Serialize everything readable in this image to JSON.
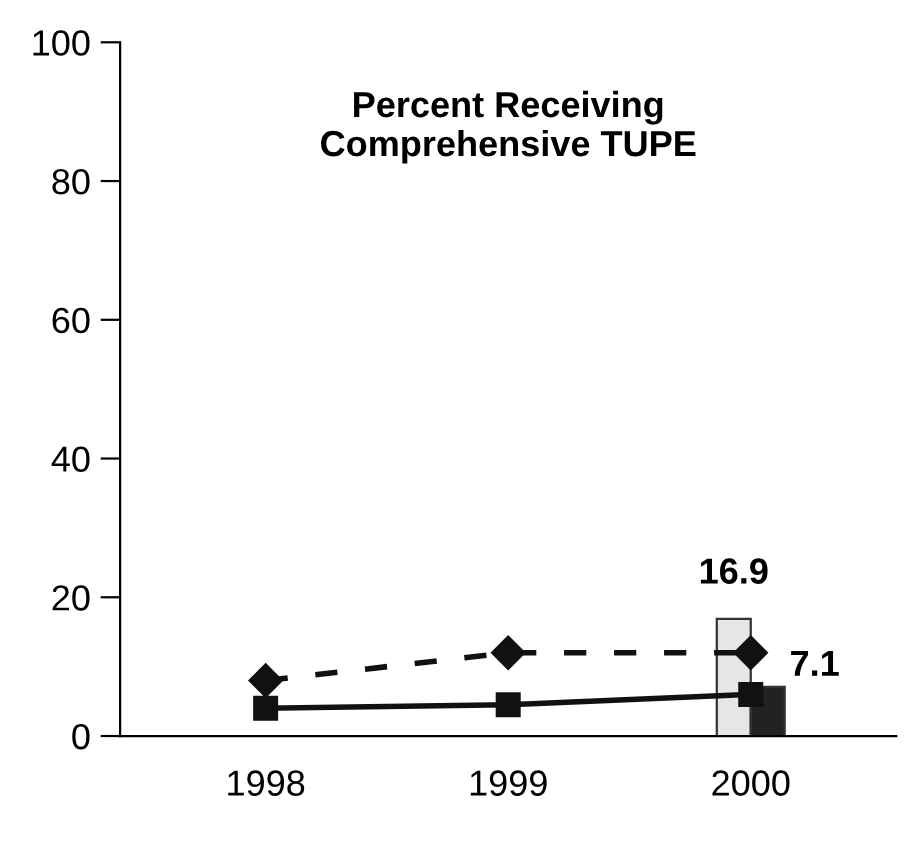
{
  "chart_data": {
    "type": "line",
    "title": "Percent Receiving\nComprehensive TUPE",
    "categories": [
      "1998",
      "1999",
      "2000"
    ],
    "series": [
      {
        "type": "bar",
        "color": "#e6e6e6",
        "values": [
          null,
          null,
          16.9
        ],
        "value_labels": [
          null,
          null,
          "16.9"
        ]
      },
      {
        "type": "bar",
        "color": "#222222",
        "values": [
          null,
          null,
          7.1
        ],
        "value_labels": [
          null,
          null,
          "7.1"
        ]
      },
      {
        "color": "#111111",
        "values": [
          8,
          12,
          12
        ],
        "marker": "diamond",
        "line_style": "dashed"
      },
      {
        "color": "#111111",
        "values": [
          4,
          4.5,
          6
        ],
        "marker": "square",
        "line_style": "solid"
      }
    ],
    "ylim": [
      0,
      100
    ],
    "yticks": [
      0,
      20,
      40,
      60,
      80,
      100
    ],
    "grid": false,
    "legend": false
  }
}
